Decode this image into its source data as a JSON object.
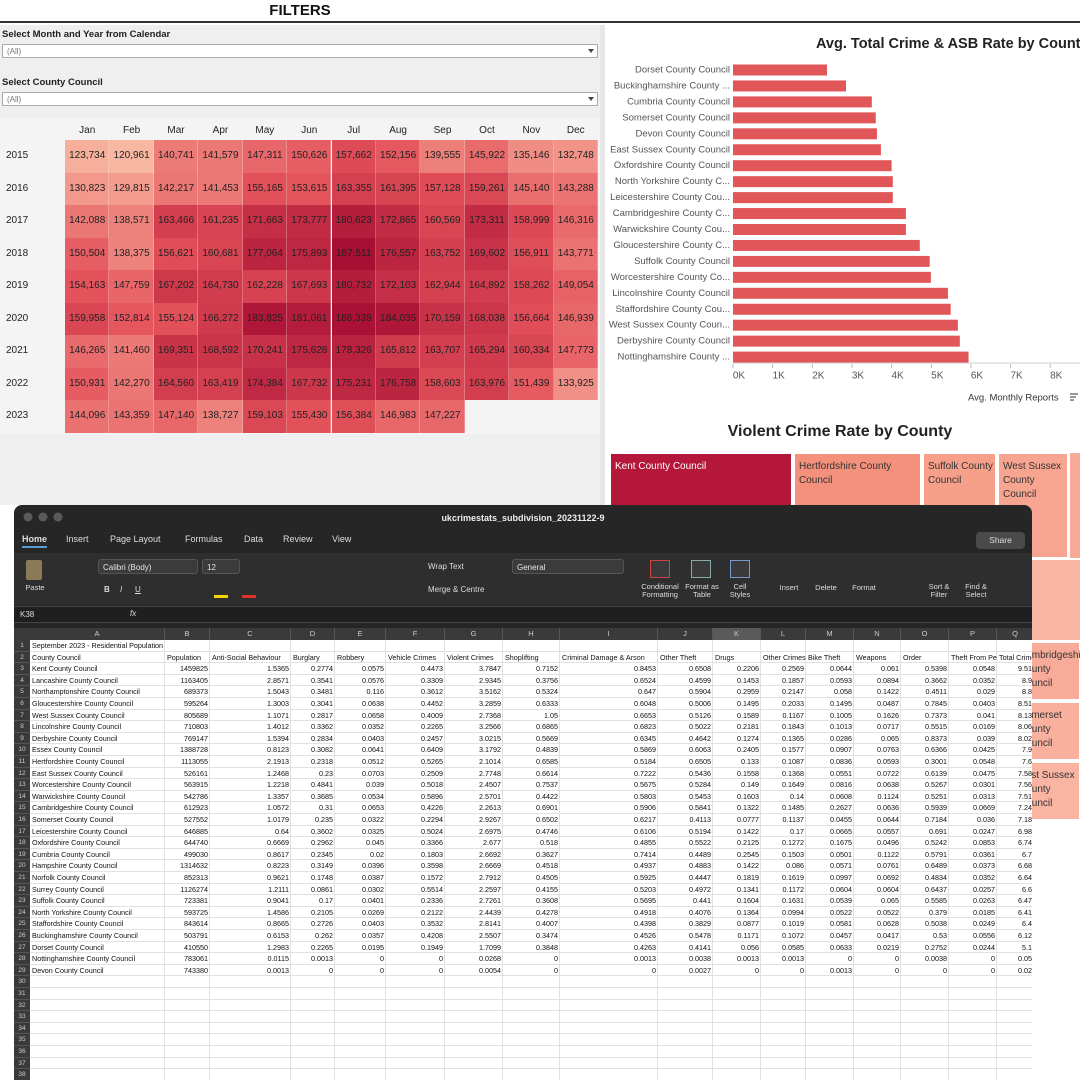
{
  "filters": {
    "title": "FILTERS",
    "fields": [
      {
        "label": "Select Month and Year from Calendar",
        "value": "(All)"
      },
      {
        "label": "Select County Council",
        "value": "(All)"
      }
    ]
  },
  "chart_data": [
    {
      "type": "heatmap",
      "categories": [
        "Jan",
        "Feb",
        "Mar",
        "Apr",
        "May",
        "Jun",
        "Jul",
        "Aug",
        "Sep",
        "Oct",
        "Nov",
        "Dec"
      ],
      "rows": [
        "2015",
        "2016",
        "2017",
        "2018",
        "2019",
        "2020",
        "2021",
        "2022",
        "2023"
      ],
      "colors": [
        "#f8b7a1",
        "#e4525b",
        "#a90f33"
      ],
      "values": [
        [
          123734,
          120961,
          140741,
          141579,
          147311,
          150626,
          157662,
          152156,
          139555,
          145922,
          135146,
          132748
        ],
        [
          130823,
          129815,
          142217,
          141453,
          155165,
          153615,
          163355,
          161395,
          157128,
          159261,
          145140,
          143288
        ],
        [
          142088,
          138571,
          163466,
          161235,
          171663,
          173777,
          180623,
          172865,
          160569,
          173311,
          158999,
          146316
        ],
        [
          150504,
          138375,
          156621,
          160681,
          177064,
          175893,
          187511,
          176557,
          163752,
          169602,
          156911,
          143771
        ],
        [
          154163,
          147759,
          167202,
          164730,
          162228,
          167693,
          180732,
          172103,
          162944,
          164892,
          158262,
          149054
        ],
        [
          159958,
          152814,
          155124,
          166272,
          183825,
          181061,
          186338,
          184035,
          170159,
          168038,
          156664,
          146939
        ],
        [
          146265,
          141460,
          169351,
          168592,
          170241,
          175628,
          178326,
          165812,
          163707,
          165294,
          160334,
          147773
        ],
        [
          150931,
          142270,
          164560,
          163419,
          174384,
          167732,
          175231,
          176758,
          158603,
          163976,
          151439,
          133925
        ],
        [
          144096,
          143359,
          147140,
          138727,
          159103,
          155430,
          156384,
          146983,
          147227,
          null,
          null,
          null
        ]
      ],
      "value_labels": [
        [
          "123,734",
          "120,961",
          "140,741",
          "141,579",
          "147,311",
          "150,626",
          "157,662",
          "152,156",
          "139,555",
          "145,922",
          "135,146",
          "132,748"
        ],
        [
          "130,823",
          "129,815",
          "142,217",
          "141,453",
          "155,165",
          "153,615",
          "163,355",
          "161,395",
          "157,128",
          "159,261",
          "145,140",
          "143,288"
        ],
        [
          "142,088",
          "138,571",
          "163,466",
          "161,235",
          "171,663",
          "173,777",
          "180,623",
          "172,865",
          "160,569",
          "173,311",
          "158,999",
          "146,316"
        ],
        [
          "150,504",
          "138,375",
          "156,621",
          "160,681",
          "177,064",
          "175,893",
          "187,511",
          "176,557",
          "163,752",
          "169,602",
          "156,911",
          "143,771"
        ],
        [
          "154,163",
          "147,759",
          "167,202",
          "164,730",
          "162,228",
          "167,693",
          "180,732",
          "172,103",
          "162,944",
          "164,892",
          "158,262",
          "149,054"
        ],
        [
          "159,958",
          "152,814",
          "155,124",
          "166,272",
          "183,825",
          "181,061",
          "186,338",
          "184,035",
          "170,159",
          "168,038",
          "156,664",
          "146,939"
        ],
        [
          "146,265",
          "141,460",
          "169,351",
          "168,592",
          "170,241",
          "175,628",
          "178,326",
          "165,812",
          "163,707",
          "165,294",
          "160,334",
          "147,773"
        ],
        [
          "150,931",
          "142,270",
          "164,560",
          "163,419",
          "174,384",
          "167,732",
          "175,231",
          "176,758",
          "158,603",
          "163,976",
          "151,439",
          "133,925"
        ],
        [
          "144,096",
          "143,359",
          "147,140",
          "138,727",
          "159,103",
          "155,430",
          "156,384",
          "146,983",
          "147,227",
          null,
          null,
          null
        ]
      ]
    },
    {
      "type": "bar",
      "orientation": "horizontal",
      "title": "Avg. Total Crime & ASB Rate by County",
      "x_label": "Avg. Monthly Reports",
      "categories": [
        "Dorset County Council",
        "Buckinghamshire County ...",
        "Cumbria County Council",
        "Somerset County Council",
        "Devon County Council",
        "East Sussex County Council",
        "Oxfordshire County Council",
        "North Yorkshire County C...",
        "Leicestershire County Cou...",
        "Cambridgeshire County C...",
        "Warwickshire County Cou...",
        "Gloucestershire County C...",
        "Suffolk County Council",
        "Worcestershire County Co...",
        "Lincolnshire County Council",
        "Staffordshire County Cou...",
        "West Sussex County Coun...",
        "Derbyshire County Council",
        "Nottinghamshire County ..."
      ],
      "values": [
        2370,
        2850,
        3500,
        3600,
        3630,
        3730,
        4000,
        4030,
        4030,
        4360,
        4360,
        4710,
        4960,
        4990,
        5420,
        5490,
        5670,
        5720,
        5940
      ],
      "color": "#e15759",
      "xlim": [
        0,
        8750
      ],
      "xticks": [
        {
          "value": 0,
          "label": "0K"
        },
        {
          "value": 1000,
          "label": "1K"
        },
        {
          "value": 2000,
          "label": "2K"
        },
        {
          "value": 3000,
          "label": "3K"
        },
        {
          "value": 4000,
          "label": "4K"
        },
        {
          "value": 5000,
          "label": "5K"
        },
        {
          "value": 6000,
          "label": "6K"
        },
        {
          "value": 7000,
          "label": "7K"
        },
        {
          "value": 8000,
          "label": "8K"
        }
      ]
    },
    {
      "type": "treemap",
      "title": "Violent Crime Rate by County",
      "categories": [
        "Kent County Council",
        "Hertfordshire County Council",
        "Suffolk County Council",
        "West Sussex County Council",
        "Cambridgeshire County Council",
        "Somerset County Council",
        "East Sussex County Council"
      ],
      "colors": [
        "#b5173b",
        "#f4917c",
        "#f6a08a",
        "#f7a590",
        "#f8ab98",
        "#f9b09d",
        "#f9b4a2"
      ]
    }
  ],
  "spreadsheet": {
    "filename": "ukcrimestats_subdivision_20231122-9",
    "tabs": [
      "Home",
      "Insert",
      "Page Layout",
      "Formulas",
      "Data",
      "Review",
      "View"
    ],
    "share": "Share",
    "ribbon": {
      "paste": "Paste",
      "font": "Calibri (Body)",
      "size": "12",
      "font_styles": [
        "B",
        "I",
        "U"
      ],
      "wrap": "Wrap Text",
      "merge": "Merge & Centre",
      "number_format": "General",
      "conditional": "Conditional Formatting",
      "format_table": "Format as Table",
      "cell_styles": "Cell Styles",
      "insert": "Insert",
      "delete": "Delete",
      "format": "Format",
      "sort": "Sort & Filter",
      "find": "Find & Select"
    },
    "name_box": "K38",
    "fx": "fx",
    "columns": [
      "A",
      "B",
      "C",
      "D",
      "E",
      "F",
      "G",
      "H",
      "I",
      "J",
      "K",
      "L",
      "M",
      "N",
      "O",
      "P",
      "Q"
    ],
    "row_numbers": [
      1,
      2,
      3,
      4,
      5,
      6,
      7,
      8,
      9,
      10,
      11,
      12,
      13,
      14,
      15,
      16,
      17,
      18,
      19,
      20,
      21,
      22,
      23,
      24,
      25,
      26,
      27,
      28,
      29,
      30,
      31,
      32,
      33,
      34,
      35,
      36,
      37,
      38
    ],
    "caption": "September 2023 - Residential Population",
    "header": [
      "County Council",
      "Population",
      "Anti-Social Behaviour",
      "Burglary",
      "Robbery",
      "Vehicle Crimes",
      "Violent Crimes",
      "Shoplifting",
      "Criminal Damage & Arson",
      "Other Theft",
      "Drugs",
      "Other Crimes",
      "Bike Theft",
      "Weapons",
      "Order",
      "Theft From Person",
      "Total Crime"
    ],
    "rows": [
      [
        "Kent County Council",
        1459825,
        1.5365,
        0.2774,
        0.0575,
        0.4473,
        3.7847,
        0.7152,
        0.8453,
        0.6508,
        0.2206,
        0.2569,
        0.0644,
        0.061,
        0.5398,
        0.0548,
        9.51
      ],
      [
        "Lancashire County Council",
        1163405,
        2.8571,
        0.3541,
        0.0576,
        0.3309,
        2.9345,
        0.3756,
        0.6524,
        0.4599,
        0.1453,
        0.1857,
        0.0593,
        0.0894,
        0.3662,
        0.0352,
        8.9
      ],
      [
        "Northamptonshire County Council",
        689373,
        1.5043,
        0.3481,
        0.116,
        0.3612,
        3.5162,
        0.5324,
        0.647,
        0.5904,
        0.2959,
        0.2147,
        0.058,
        0.1422,
        0.4511,
        0.029,
        8.8
      ],
      [
        "Gloucestershire County Council",
        595264,
        1.3003,
        0.3041,
        0.0638,
        0.4452,
        3.2859,
        0.6333,
        0.6048,
        0.5006,
        0.1495,
        0.2033,
        0.1495,
        0.0487,
        0.7845,
        0.0403,
        8.51
      ],
      [
        "West Sussex County Council",
        805689,
        1.1071,
        0.2817,
        0.0658,
        0.4009,
        2.7368,
        1.05,
        0.6653,
        0.5126,
        0.1589,
        0.1167,
        0.1005,
        0.1626,
        0.7373,
        0.041,
        8.13
      ],
      [
        "Lincolnshire County Council",
        710803,
        1.4012,
        0.3362,
        0.0352,
        0.2265,
        3.2566,
        0.6865,
        0.6823,
        0.5022,
        0.2181,
        0.1843,
        0.1013,
        0.0717,
        0.5515,
        0.0169,
        8.06
      ],
      [
        "Derbyshire County Council",
        769147,
        1.5394,
        0.2834,
        0.0403,
        0.2457,
        3.0215,
        0.5669,
        0.6345,
        0.4642,
        0.1274,
        0.1365,
        0.0286,
        0.065,
        0.8373,
        0.039,
        8.02
      ],
      [
        "Essex County Council",
        1388728,
        0.8123,
        0.3082,
        0.0641,
        0.6409,
        3.1792,
        0.4839,
        0.5869,
        0.6063,
        0.2405,
        0.1577,
        0.0907,
        0.0763,
        0.6366,
        0.0425,
        7.9
      ],
      [
        "Hertfordshire County Council",
        1113055,
        2.1913,
        0.2318,
        0.0512,
        0.5265,
        2.1014,
        0.6585,
        0.5184,
        0.6505,
        0.133,
        0.1087,
        0.0836,
        0.0593,
        0.3001,
        0.0548,
        7.6
      ],
      [
        "East Sussex County Council",
        526161,
        1.2468,
        0.23,
        0.0703,
        0.2509,
        2.7748,
        0.6614,
        0.7222,
        0.5436,
        0.1558,
        0.1368,
        0.0551,
        0.0722,
        0.6139,
        0.0475,
        7.58
      ],
      [
        "Worcestershire County Council",
        563915,
        1.2218,
        0.4841,
        0.039,
        0.5018,
        2.4507,
        0.7537,
        0.5675,
        0.5284,
        0.149,
        0.1649,
        0.0816,
        0.0638,
        0.5267,
        0.0301,
        7.56
      ],
      [
        "Warwickshire County Council",
        542786,
        1.3357,
        0.3685,
        0.0534,
        0.5896,
        2.5701,
        0.4422,
        0.5803,
        0.5453,
        0.1603,
        0.14,
        0.0608,
        0.1124,
        0.5251,
        0.0313,
        7.51
      ],
      [
        "Cambridgeshire County Council",
        612923,
        1.0572,
        0.31,
        0.0653,
        0.4226,
        2.2613,
        0.6901,
        0.5906,
        0.5841,
        0.1322,
        0.1485,
        0.2627,
        0.0636,
        0.5939,
        0.0669,
        7.24
      ],
      [
        "Somerset County Council",
        527552,
        1.0179,
        0.235,
        0.0322,
        0.2294,
        2.9267,
        0.6502,
        0.6217,
        0.4113,
        0.0777,
        0.1137,
        0.0455,
        0.0644,
        0.7184,
        0.036,
        7.18
      ],
      [
        "Leicestershire County Council",
        646885,
        0.64,
        0.3602,
        0.0325,
        0.5024,
        2.6975,
        0.4746,
        0.6106,
        0.5194,
        0.1422,
        0.17,
        0.0665,
        0.0557,
        0.691,
        0.0247,
        6.98
      ],
      [
        "Oxfordshire County Council",
        644740,
        0.6669,
        0.2962,
        0.045,
        0.3366,
        2.677,
        0.518,
        0.4855,
        0.5522,
        0.2125,
        0.1272,
        0.1675,
        0.0496,
        0.5242,
        0.0853,
        6.74
      ],
      [
        "Cumbria County Council",
        499030,
        0.8617,
        0.2345,
        0.02,
        0.1803,
        2.6692,
        0.3627,
        0.7414,
        0.4489,
        0.2545,
        0.1503,
        0.0501,
        0.1122,
        0.5791,
        0.0361,
        6.7
      ],
      [
        "Hampshire County Council",
        1314632,
        0.8223,
        0.3149,
        0.0396,
        0.3598,
        2.6669,
        0.4518,
        0.4937,
        0.4883,
        0.1422,
        0.086,
        0.0571,
        0.0761,
        0.6489,
        0.0373,
        6.68
      ],
      [
        "Norfolk County Council",
        852313,
        0.9621,
        0.1748,
        0.0387,
        0.1572,
        2.7912,
        0.4505,
        0.5925,
        0.4447,
        0.1819,
        0.1619,
        0.0997,
        0.0692,
        0.4834,
        0.0352,
        6.64
      ],
      [
        "Surrey County Council",
        1126274,
        1.2111,
        0.0861,
        0.0302,
        0.5514,
        2.2597,
        0.4155,
        0.5203,
        0.4972,
        0.1341,
        0.1172,
        0.0604,
        0.0604,
        0.6437,
        0.0257,
        6.6
      ],
      [
        "Suffolk County Council",
        723381,
        0.9041,
        0.17,
        0.0401,
        0.2336,
        2.7261,
        0.3608,
        0.5695,
        0.441,
        0.1604,
        0.1631,
        0.0539,
        0.065,
        0.5585,
        0.0263,
        6.47
      ],
      [
        "North Yorkshire County Council",
        593725,
        1.4586,
        0.2105,
        0.0269,
        0.2122,
        2.4439,
        0.4278,
        0.4918,
        0.4076,
        0.1364,
        0.0994,
        0.0522,
        0.0522,
        0.379,
        0.0185,
        6.41
      ],
      [
        "Staffordshire County Council",
        843614,
        0.8665,
        0.2726,
        0.0403,
        0.3532,
        2.8141,
        0.4007,
        0.4398,
        0.3829,
        0.0877,
        0.1019,
        0.0581,
        0.0628,
        0.5038,
        0.0249,
        6.4
      ],
      [
        "Buckinghamshire County Council",
        503791,
        0.6153,
        0.262,
        0.0357,
        0.4208,
        2.5507,
        0.3474,
        0.4526,
        0.5478,
        0.1171,
        0.1072,
        0.0457,
        0.0417,
        0.53,
        0.0556,
        6.12
      ],
      [
        "Dorset County Council",
        410550,
        1.2983,
        0.2265,
        0.0195,
        0.1949,
        1.7099,
        0.3848,
        0.4263,
        0.4141,
        0.056,
        0.0585,
        0.0633,
        0.0219,
        0.2752,
        0.0244,
        5.1
      ],
      [
        "Nottinghamshire County Council",
        783061,
        0.0115,
        0.0013,
        0,
        0,
        0.0268,
        0,
        0.0013,
        0.0038,
        0.0013,
        0.0013,
        0,
        0,
        0.0038,
        0,
        0.05
      ],
      [
        "Devon County Council",
        743380,
        0.0013,
        0,
        0,
        0,
        0.0054,
        0,
        0,
        0.0027,
        0,
        0,
        0.0013,
        0,
        0,
        0,
        0.02
      ]
    ]
  }
}
